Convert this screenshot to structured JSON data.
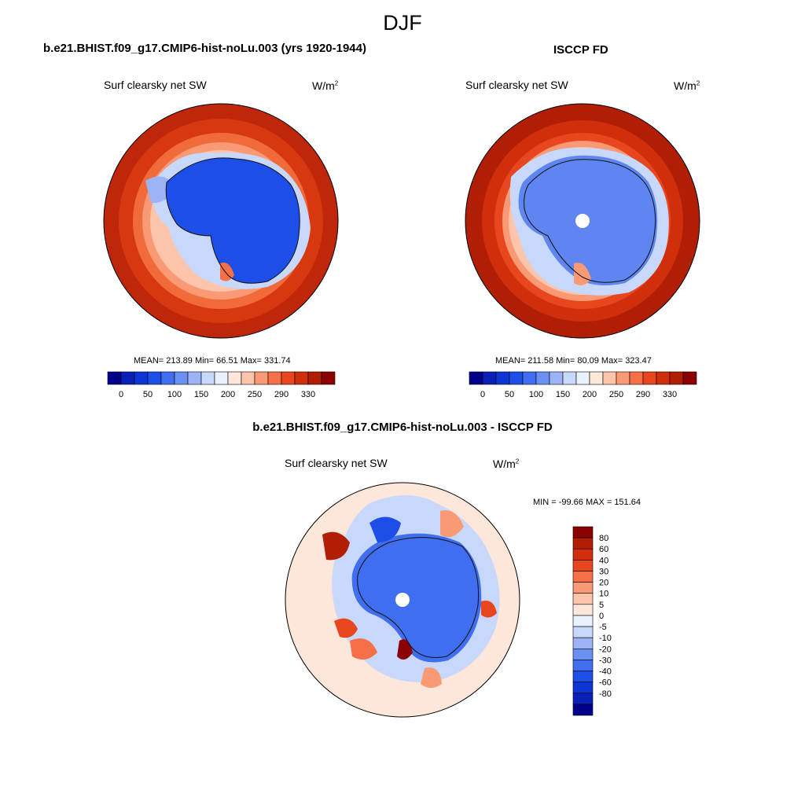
{
  "title": "DJF",
  "panels": [
    {
      "heading": "b.e21.BHIST.f09_g17.CMIP6-hist-noLu.003 (yrs 1920-1944)",
      "variable": "Surf clearsky net SW",
      "units_base": "W/m",
      "units_exp": "2",
      "stats": "MEAN= 213.89  Min=  66.51  Max= 331.74"
    },
    {
      "heading": "ISCCP FD",
      "variable": "Surf clearsky net SW",
      "units_base": "W/m",
      "units_exp": "2",
      "stats": "MEAN= 211.58  Min=  80.09  Max= 323.47"
    },
    {
      "heading": "b.e21.BHIST.f09_g17.CMIP6-hist-noLu.003 - ISCCP FD",
      "variable": "Surf clearsky net SW",
      "units_base": "W/m",
      "units_exp": "2",
      "stats": "MIN = -99.66 MAX = 151.64"
    }
  ],
  "abs_colorbar": {
    "colors": [
      "#00008b",
      "#0a1fb5",
      "#0d35d6",
      "#1d4fe8",
      "#3f6ff0",
      "#6a90f2",
      "#9cb4f5",
      "#c8d8fa",
      "#e8f1fd",
      "#fde6da",
      "#fcc4ab",
      "#fa9a74",
      "#f56f47",
      "#e8461e",
      "#d12e0b",
      "#b01e06",
      "#8b0000"
    ],
    "labels": [
      "0",
      "50",
      "100",
      "150",
      "200",
      "250",
      "290",
      "330"
    ]
  },
  "diff_colorbar": {
    "colors": [
      "#8b0000",
      "#b01e06",
      "#d12e0b",
      "#e8461e",
      "#f56f47",
      "#fa9a74",
      "#fcc4ab",
      "#fde6da",
      "#e8f1fd",
      "#c8d8fa",
      "#9cb4f5",
      "#6a90f2",
      "#3f6ff0",
      "#1d4fe8",
      "#0d35d6",
      "#0a1fb5",
      "#00008b"
    ],
    "labels": [
      "80",
      "60",
      "40",
      "30",
      "20",
      "10",
      "5",
      "0",
      "-5",
      "-10",
      "-20",
      "-30",
      "-40",
      "-60",
      "-80"
    ]
  }
}
